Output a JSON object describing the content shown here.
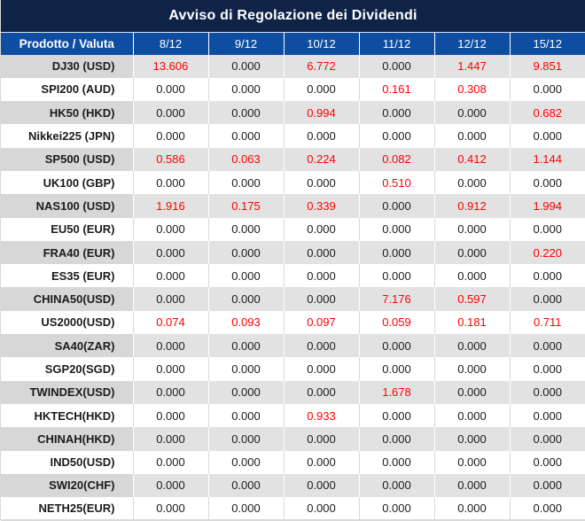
{
  "title": "Avviso di Regolazione dei Dividendi",
  "colors": {
    "title_bg": "#0f2347",
    "header_bg": "#0d4ea3",
    "negative_red": "#fe0000",
    "row_gray": "#e2e2e2",
    "label_gray": "#d7d7d7"
  },
  "table": {
    "header": [
      "Prodotto / Valuta",
      "8/12",
      "9/12",
      "10/12",
      "11/12",
      "12/12",
      "15/12"
    ],
    "rows": [
      {
        "product": "DJ30 (USD)",
        "values": [
          "13.606",
          "0.000",
          "6.772",
          "0.000",
          "1.447",
          "9.851"
        ],
        "red": [
          true,
          false,
          true,
          false,
          true,
          true
        ]
      },
      {
        "product": "SPI200 (AUD)",
        "values": [
          "0.000",
          "0.000",
          "0.000",
          "0.161",
          "0.308",
          "0.000"
        ],
        "red": [
          false,
          false,
          false,
          true,
          true,
          false
        ]
      },
      {
        "product": "HK50 (HKD)",
        "values": [
          "0.000",
          "0.000",
          "0.994",
          "0.000",
          "0.000",
          "0.682"
        ],
        "red": [
          false,
          false,
          true,
          false,
          false,
          true
        ]
      },
      {
        "product": "Nikkei225 (JPN)",
        "values": [
          "0.000",
          "0.000",
          "0.000",
          "0.000",
          "0.000",
          "0.000"
        ],
        "red": [
          false,
          false,
          false,
          false,
          false,
          false
        ]
      },
      {
        "product": "SP500 (USD)",
        "values": [
          "0.586",
          "0.063",
          "0.224",
          "0.082",
          "0.412",
          "1.144"
        ],
        "red": [
          true,
          true,
          true,
          true,
          true,
          true
        ]
      },
      {
        "product": "UK100 (GBP)",
        "values": [
          "0.000",
          "0.000",
          "0.000",
          "0.510",
          "0.000",
          "0.000"
        ],
        "red": [
          false,
          false,
          false,
          true,
          false,
          false
        ]
      },
      {
        "product": "NAS100 (USD)",
        "values": [
          "1.916",
          "0.175",
          "0.339",
          "0.000",
          "0.912",
          "1.994"
        ],
        "red": [
          true,
          true,
          true,
          false,
          true,
          true
        ]
      },
      {
        "product": "EU50 (EUR)",
        "values": [
          "0.000",
          "0.000",
          "0.000",
          "0.000",
          "0.000",
          "0.000"
        ],
        "red": [
          false,
          false,
          false,
          false,
          false,
          false
        ]
      },
      {
        "product": "FRA40 (EUR)",
        "values": [
          "0.000",
          "0.000",
          "0.000",
          "0.000",
          "0.000",
          "0.220"
        ],
        "red": [
          false,
          false,
          false,
          false,
          false,
          true
        ]
      },
      {
        "product": "ES35 (EUR)",
        "values": [
          "0.000",
          "0.000",
          "0.000",
          "0.000",
          "0.000",
          "0.000"
        ],
        "red": [
          false,
          false,
          false,
          false,
          false,
          false
        ]
      },
      {
        "product": "CHINA50(USD)",
        "values": [
          "0.000",
          "0.000",
          "0.000",
          "7.176",
          "0.597",
          "0.000"
        ],
        "red": [
          false,
          false,
          false,
          true,
          true,
          false
        ]
      },
      {
        "product": "US2000(USD)",
        "values": [
          "0.074",
          "0.093",
          "0.097",
          "0.059",
          "0.181",
          "0.711"
        ],
        "red": [
          true,
          true,
          true,
          true,
          true,
          true
        ]
      },
      {
        "product": "SA40(ZAR)",
        "values": [
          "0.000",
          "0.000",
          "0.000",
          "0.000",
          "0.000",
          "0.000"
        ],
        "red": [
          false,
          false,
          false,
          false,
          false,
          false
        ]
      },
      {
        "product": "SGP20(SGD)",
        "values": [
          "0.000",
          "0.000",
          "0.000",
          "0.000",
          "0.000",
          "0.000"
        ],
        "red": [
          false,
          false,
          false,
          false,
          false,
          false
        ]
      },
      {
        "product": "TWINDEX(USD)",
        "values": [
          "0.000",
          "0.000",
          "0.000",
          "1.678",
          "0.000",
          "0.000"
        ],
        "red": [
          false,
          false,
          false,
          true,
          false,
          false
        ]
      },
      {
        "product": "HKTECH(HKD)",
        "values": [
          "0.000",
          "0.000",
          "0.933",
          "0.000",
          "0.000",
          "0.000"
        ],
        "red": [
          false,
          false,
          true,
          false,
          false,
          false
        ]
      },
      {
        "product": "CHINAH(HKD)",
        "values": [
          "0.000",
          "0.000",
          "0.000",
          "0.000",
          "0.000",
          "0.000"
        ],
        "red": [
          false,
          false,
          false,
          false,
          false,
          false
        ]
      },
      {
        "product": "IND50(USD)",
        "values": [
          "0.000",
          "0.000",
          "0.000",
          "0.000",
          "0.000",
          "0.000"
        ],
        "red": [
          false,
          false,
          false,
          false,
          false,
          false
        ]
      },
      {
        "product": "SWI20(CHF)",
        "values": [
          "0.000",
          "0.000",
          "0.000",
          "0.000",
          "0.000",
          "0.000"
        ],
        "red": [
          false,
          false,
          false,
          false,
          false,
          false
        ]
      },
      {
        "product": "NETH25(EUR)",
        "values": [
          "0.000",
          "0.000",
          "0.000",
          "0.000",
          "0.000",
          "0.000"
        ],
        "red": [
          false,
          false,
          false,
          false,
          false,
          false
        ]
      }
    ]
  }
}
